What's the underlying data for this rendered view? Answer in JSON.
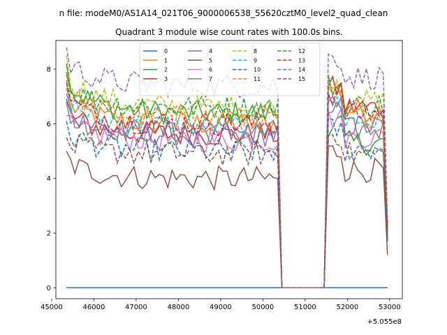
{
  "figure": {
    "suptitle": "n file: modeM0/AS1A14_021T06_9000006538_55620cztM0_level2_quad_clean"
  },
  "chart_data": {
    "type": "line",
    "title": "Quadrant 3 module wise count rates with 100.0s bins.",
    "xlabel": "",
    "ylabel": "",
    "x_offset_label": "+5.055e8",
    "xlim": [
      45100,
      53300
    ],
    "ylim": [
      -0.4,
      9.05
    ],
    "xticks": [
      45000,
      46000,
      47000,
      48000,
      49000,
      50000,
      51000,
      52000,
      53000
    ],
    "xtick_labels": [
      "45000",
      "46000",
      "47000",
      "48000",
      "49000",
      "50000",
      "51000",
      "52000",
      "53000"
    ],
    "yticks": [
      0,
      2,
      4,
      6,
      8
    ],
    "ytick_labels": [
      "0",
      "2",
      "4",
      "6",
      "8"
    ],
    "grid": false,
    "legend": {
      "placement": "upper-center",
      "columns": 4
    },
    "segments": {
      "first_start": 45350,
      "first_end": 50350,
      "gap_drop": 50450,
      "gap_rise": 51450,
      "second_start": 51550,
      "second_end": 52950,
      "bin_width": 100
    },
    "series": [
      {
        "name": "0",
        "color": "#1f77b4",
        "style": "solid",
        "start": 0,
        "end": 0
      },
      {
        "name": "1",
        "color": "#ff7f0e",
        "style": "solid",
        "start": 7.3,
        "end": 2.2
      },
      {
        "name": "2",
        "color": "#2ca02c",
        "style": "solid",
        "start": 8.2,
        "end": 1.7
      },
      {
        "name": "3",
        "color": "#d62728",
        "style": "solid",
        "start": 6.9,
        "end": 2.1
      },
      {
        "name": "4",
        "color": "#9467bd",
        "style": "solid",
        "start": 7.1,
        "end": 2.0
      },
      {
        "name": "5",
        "color": "#8c564b",
        "style": "solid",
        "start": 5.0,
        "end": 1.2
      },
      {
        "name": "6",
        "color": "#e377c2",
        "style": "solid",
        "start": 6.3,
        "end": 1.9
      },
      {
        "name": "7",
        "color": "#7f7f7f",
        "style": "solid",
        "start": 6.8,
        "end": 2.0
      },
      {
        "name": "8",
        "color": "#bcbd22",
        "style": "dashed",
        "start": 8.5,
        "end": 2.4
      },
      {
        "name": "9",
        "color": "#17becf",
        "style": "dashed",
        "start": 7.6,
        "end": 2.1
      },
      {
        "name": "10",
        "color": "#1f77b4",
        "style": "dashed",
        "start": 6.1,
        "end": 1.8
      },
      {
        "name": "11",
        "color": "#ff7f0e",
        "style": "dashed",
        "start": 7.9,
        "end": 2.3
      },
      {
        "name": "12",
        "color": "#2ca02c",
        "style": "dashed",
        "start": 7.8,
        "end": 2.1
      },
      {
        "name": "13",
        "color": "#d62728",
        "style": "dashed",
        "start": 7.5,
        "end": 2.2
      },
      {
        "name": "14",
        "color": "#9467bd",
        "style": "dashed",
        "start": 8.8,
        "end": 2.5
      },
      {
        "name": "15",
        "color": "#8c564b",
        "style": "dashed",
        "start": 5.5,
        "end": 1.9
      }
    ],
    "levels": {
      "first": [
        0,
        6.0,
        6.4,
        5.6,
        5.6,
        4.0,
        5.4,
        5.7,
        6.6,
        5.9,
        5.0,
        6.2,
        6.6,
        6.0,
        7.4,
        4.9
      ],
      "second": [
        0,
        6.5,
        5.3,
        6.6,
        5.9,
        4.3,
        5.5,
        5.8,
        6.8,
        6.1,
        5.1,
        6.3,
        6.7,
        6.4,
        7.7,
        4.9
      ]
    }
  }
}
